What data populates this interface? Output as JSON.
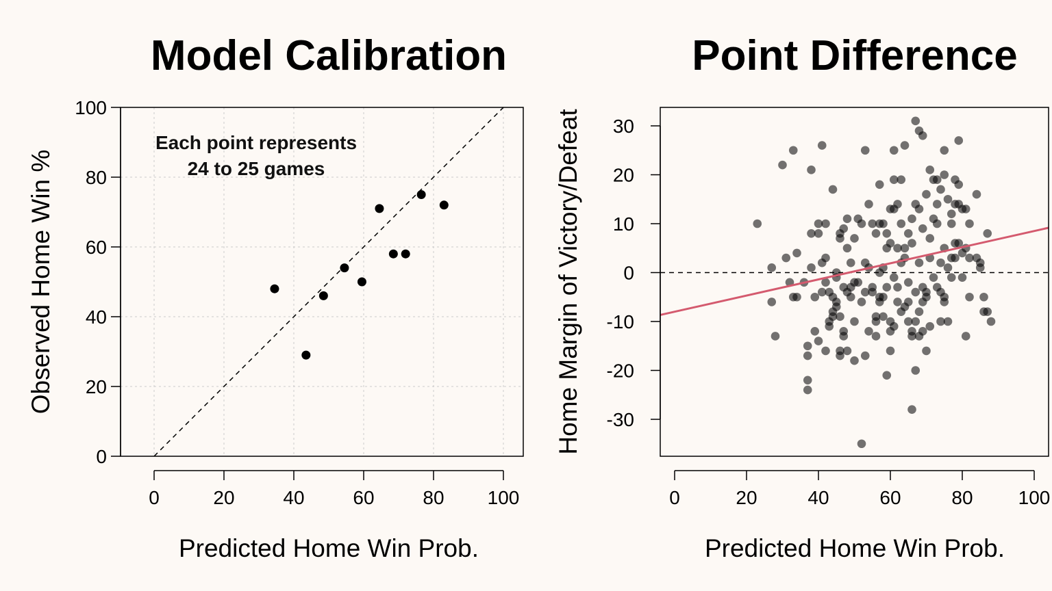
{
  "chart_data": [
    {
      "type": "scatter",
      "title": "Model Calibration",
      "xlabel": "Predicted Home Win Prob.",
      "ylabel": "Observed Home Win %",
      "xlim": [
        -5,
        105
      ],
      "ylim": [
        0,
        100
      ],
      "xticks": [
        0,
        20,
        40,
        60,
        80,
        100
      ],
      "yticks": [
        0,
        20,
        40,
        60,
        80,
        100
      ],
      "grid": true,
      "reference_line": "y = x (dashed)",
      "annotation": [
        "Each point represents",
        "24 to 25 games"
      ],
      "point_color": "#000000",
      "points": [
        {
          "x": 34.5,
          "y": 48
        },
        {
          "x": 43.5,
          "y": 29
        },
        {
          "x": 48.5,
          "y": 46
        },
        {
          "x": 54.5,
          "y": 54
        },
        {
          "x": 59.5,
          "y": 50
        },
        {
          "x": 64.5,
          "y": 71
        },
        {
          "x": 68.5,
          "y": 58
        },
        {
          "x": 72,
          "y": 58
        },
        {
          "x": 76.5,
          "y": 75
        },
        {
          "x": 83,
          "y": 72
        }
      ]
    },
    {
      "type": "scatter",
      "title": "Point Difference",
      "xlabel": "Predicted Home Win Prob.",
      "ylabel": "Home Margin of Victory/Defeat",
      "xlim": [
        -4,
        104
      ],
      "ylim": [
        -37,
        34
      ],
      "xticks": [
        0,
        20,
        40,
        60,
        80,
        100
      ],
      "yticks": [
        -30,
        -20,
        -10,
        0,
        10,
        20,
        30
      ],
      "reference_line": "y = 0 (dashed)",
      "fit_line": {
        "color": "#d45a6e",
        "intercept": -8,
        "slope": 0.165
      },
      "point_color": "rgba(0,0,0,0.55)",
      "points": [
        [
          23,
          10
        ],
        [
          27,
          -6
        ],
        [
          27,
          1
        ],
        [
          28,
          -13
        ],
        [
          30,
          22
        ],
        [
          31,
          3
        ],
        [
          32,
          -2
        ],
        [
          33,
          25
        ],
        [
          33,
          -5
        ],
        [
          34,
          4
        ],
        [
          34,
          -5
        ],
        [
          36,
          -2
        ],
        [
          37,
          -15
        ],
        [
          37,
          -17
        ],
        [
          37,
          -22
        ],
        [
          37,
          -24
        ],
        [
          38,
          21
        ],
        [
          38,
          8
        ],
        [
          38,
          1
        ],
        [
          39,
          -12
        ],
        [
          39,
          -5
        ],
        [
          40,
          10
        ],
        [
          40,
          8
        ],
        [
          40,
          -14
        ],
        [
          41,
          26
        ],
        [
          41,
          2
        ],
        [
          41,
          -4
        ],
        [
          42,
          10
        ],
        [
          42,
          3
        ],
        [
          42,
          -2
        ],
        [
          42,
          -16
        ],
        [
          43,
          -4
        ],
        [
          43,
          -10
        ],
        [
          43,
          -11
        ],
        [
          44,
          17
        ],
        [
          44,
          -8
        ],
        [
          44,
          -5
        ],
        [
          44,
          -9
        ],
        [
          45,
          -6
        ],
        [
          45,
          -7
        ],
        [
          45,
          -1
        ],
        [
          45,
          0
        ],
        [
          46,
          -17
        ],
        [
          46,
          -16
        ],
        [
          46,
          -9
        ],
        [
          46,
          7
        ],
        [
          46,
          8
        ],
        [
          47,
          9
        ],
        [
          47,
          -3
        ],
        [
          47,
          -12
        ],
        [
          47,
          -13
        ],
        [
          48,
          11
        ],
        [
          48,
          5
        ],
        [
          48,
          -16
        ],
        [
          48,
          -4
        ],
        [
          49,
          -3
        ],
        [
          49,
          -5
        ],
        [
          49,
          2
        ],
        [
          50,
          7
        ],
        [
          50,
          -2
        ],
        [
          50,
          -10
        ],
        [
          50,
          -18
        ],
        [
          51,
          11
        ],
        [
          51,
          -2
        ],
        [
          52,
          10
        ],
        [
          52,
          -6
        ],
        [
          52,
          -35
        ],
        [
          53,
          25
        ],
        [
          53,
          2
        ],
        [
          53,
          -4
        ],
        [
          53,
          -17
        ],
        [
          54,
          -12
        ],
        [
          54,
          14
        ],
        [
          54,
          1
        ],
        [
          55,
          -4
        ],
        [
          55,
          10
        ],
        [
          55,
          -3
        ],
        [
          56,
          8
        ],
        [
          56,
          -13
        ],
        [
          56,
          -9
        ],
        [
          56,
          -10
        ],
        [
          57,
          10
        ],
        [
          57,
          -5
        ],
        [
          57,
          -6
        ],
        [
          57,
          18
        ],
        [
          57,
          0
        ],
        [
          58,
          10
        ],
        [
          58,
          -5
        ],
        [
          58,
          -9
        ],
        [
          58,
          1
        ],
        [
          59,
          -21
        ],
        [
          59,
          8
        ],
        [
          59,
          -3
        ],
        [
          59,
          5
        ],
        [
          60,
          13
        ],
        [
          60,
          6
        ],
        [
          60,
          -12
        ],
        [
          60,
          -16
        ],
        [
          60,
          -10
        ],
        [
          61,
          25
        ],
        [
          61,
          19
        ],
        [
          61,
          13
        ],
        [
          61,
          -1
        ],
        [
          61,
          -11
        ],
        [
          62,
          14
        ],
        [
          62,
          5
        ],
        [
          62,
          -6
        ],
        [
          62,
          -3
        ],
        [
          63,
          19
        ],
        [
          63,
          10
        ],
        [
          63,
          -8
        ],
        [
          63,
          2
        ],
        [
          64,
          26
        ],
        [
          64,
          5
        ],
        [
          64,
          3
        ],
        [
          64,
          -7
        ],
        [
          65,
          8
        ],
        [
          65,
          -2
        ],
        [
          65,
          -6
        ],
        [
          65,
          -10
        ],
        [
          66,
          -12
        ],
        [
          66,
          -13
        ],
        [
          66,
          -28
        ],
        [
          66,
          11
        ],
        [
          66,
          6
        ],
        [
          67,
          -20
        ],
        [
          67,
          31
        ],
        [
          67,
          14
        ],
        [
          67,
          -10
        ],
        [
          67,
          -4
        ],
        [
          68,
          29
        ],
        [
          68,
          13
        ],
        [
          68,
          -13
        ],
        [
          68,
          2
        ],
        [
          68,
          -8
        ],
        [
          69,
          28
        ],
        [
          69,
          9
        ],
        [
          69,
          -3
        ],
        [
          69,
          -6
        ],
        [
          69,
          -12
        ],
        [
          70,
          16
        ],
        [
          70,
          -5
        ],
        [
          70,
          -4
        ],
        [
          70,
          -16
        ],
        [
          71,
          21
        ],
        [
          71,
          7
        ],
        [
          71,
          -11
        ],
        [
          71,
          3
        ],
        [
          72,
          19
        ],
        [
          72,
          -1
        ],
        [
          72,
          11
        ],
        [
          73,
          19
        ],
        [
          73,
          -3
        ],
        [
          73,
          10
        ],
        [
          73,
          14
        ],
        [
          74,
          -4
        ],
        [
          74,
          2
        ],
        [
          74,
          17
        ],
        [
          74,
          -10
        ],
        [
          75,
          25
        ],
        [
          75,
          20
        ],
        [
          75,
          5
        ],
        [
          75,
          -5
        ],
        [
          75,
          -6
        ],
        [
          76,
          15
        ],
        [
          76,
          1
        ],
        [
          76,
          -10
        ],
        [
          77,
          12
        ],
        [
          77,
          -1
        ],
        [
          77,
          3
        ],
        [
          77,
          10
        ],
        [
          78,
          19
        ],
        [
          78,
          14
        ],
        [
          78,
          6
        ],
        [
          78,
          3
        ],
        [
          79,
          18
        ],
        [
          79,
          14
        ],
        [
          79,
          27
        ],
        [
          79,
          6
        ],
        [
          80,
          13
        ],
        [
          80,
          4
        ],
        [
          80,
          -1
        ],
        [
          81,
          13
        ],
        [
          81,
          5
        ],
        [
          81,
          -13
        ],
        [
          82,
          10
        ],
        [
          82,
          3
        ],
        [
          82,
          -5
        ],
        [
          84,
          3
        ],
        [
          84,
          16
        ],
        [
          85,
          2
        ],
        [
          85,
          1
        ],
        [
          86,
          -5
        ],
        [
          86,
          -8
        ],
        [
          87,
          -8
        ],
        [
          87,
          8
        ],
        [
          88,
          -10
        ]
      ]
    }
  ]
}
